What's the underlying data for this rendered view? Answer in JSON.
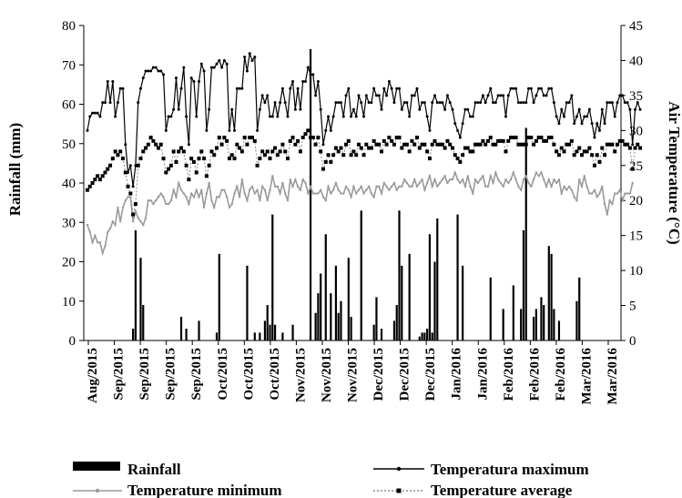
{
  "chart_data": {
    "type": "bar+line",
    "title": "",
    "ylabel_left": "Rainfall (mm)",
    "ylabel_right": "Air Temperature (°C)",
    "ylim_left": [
      0,
      80
    ],
    "yticks_left": [
      "0",
      "10",
      "20",
      "30",
      "40",
      "50",
      "60",
      "70",
      "80"
    ],
    "ylim_right": [
      0,
      45
    ],
    "yticks_right": [
      "0",
      "5",
      "10",
      "15",
      "20",
      "25",
      "30",
      "35",
      "40",
      "45"
    ],
    "x_tick_labels": [
      "Aug/2015",
      "Sep/2015",
      "Sep/2015",
      "Sep/2015",
      "Sep/2015",
      "Oct/2015",
      "Oct/2015",
      "Oct/2015",
      "Nov/2015",
      "Nov/2015",
      "Nov/2015",
      "Dec/2015",
      "Dec/2015",
      "Dec/2015",
      "Jan/2016",
      "Jan/2016",
      "Feb/2016",
      "Feb/2016",
      "Feb/2016",
      "Mar/2016",
      "Mar/2016"
    ],
    "n_days": 210,
    "grid": false,
    "legend_position": "bottom",
    "legend": [
      {
        "label": "Rainfall",
        "style": "bar",
        "color": "#000000"
      },
      {
        "label": "Temperatura maximum",
        "style": "line-dot",
        "color": "#000000"
      },
      {
        "label": "Temperature minimum",
        "style": "line-dot",
        "color": "#9a9a9a"
      },
      {
        "label": "Temperature average",
        "style": "dotted-square",
        "color": "#000000"
      }
    ],
    "rainfall": {
      "name": "Rainfall",
      "points": [
        [
          18,
          3
        ],
        [
          19,
          28
        ],
        [
          21,
          21
        ],
        [
          22,
          9
        ],
        [
          37,
          6
        ],
        [
          39,
          3
        ],
        [
          44,
          5
        ],
        [
          51,
          2
        ],
        [
          52,
          22
        ],
        [
          63,
          19
        ],
        [
          66,
          2
        ],
        [
          68,
          2
        ],
        [
          70,
          5
        ],
        [
          71,
          9
        ],
        [
          72,
          4
        ],
        [
          73,
          32
        ],
        [
          74,
          4
        ],
        [
          77,
          2
        ],
        [
          81,
          4
        ],
        [
          88,
          74
        ],
        [
          90,
          7
        ],
        [
          91,
          12
        ],
        [
          92,
          17
        ],
        [
          94,
          27
        ],
        [
          96,
          12
        ],
        [
          98,
          19
        ],
        [
          99,
          7
        ],
        [
          100,
          10
        ],
        [
          103,
          21
        ],
        [
          104,
          6
        ],
        [
          108,
          33
        ],
        [
          113,
          4
        ],
        [
          114,
          11
        ],
        [
          116,
          3
        ],
        [
          121,
          5
        ],
        [
          122,
          9
        ],
        [
          123,
          33
        ],
        [
          124,
          19
        ],
        [
          127,
          22
        ],
        [
          131,
          1
        ],
        [
          132,
          2
        ],
        [
          133,
          2
        ],
        [
          134,
          3
        ],
        [
          135,
          27
        ],
        [
          136,
          2
        ],
        [
          137,
          20
        ],
        [
          138,
          31
        ],
        [
          146,
          32
        ],
        [
          148,
          19
        ],
        [
          159,
          16
        ],
        [
          164,
          8
        ],
        [
          168,
          14
        ],
        [
          171,
          8
        ],
        [
          172,
          28
        ],
        [
          173,
          54
        ],
        [
          176,
          6
        ],
        [
          177,
          8
        ],
        [
          179,
          11
        ],
        [
          180,
          9
        ],
        [
          182,
          24
        ],
        [
          183,
          22
        ],
        [
          184,
          8
        ],
        [
          186,
          5
        ],
        [
          193,
          10
        ],
        [
          194,
          16
        ]
      ]
    },
    "series": [
      {
        "name": "Temperatura maximum",
        "values": [
          30,
          32,
          32.5,
          32.5,
          32.5,
          32,
          34,
          34,
          37,
          34,
          37,
          32,
          34,
          36,
          36,
          28,
          24,
          25,
          22,
          25,
          34,
          36,
          37.5,
          38.5,
          38.5,
          38.5,
          39,
          39,
          38.5,
          38.5,
          38,
          30,
          32,
          32,
          33,
          37.5,
          33,
          36,
          39,
          32,
          28,
          37.5,
          37,
          32,
          37,
          39.5,
          38.5,
          30,
          33,
          39,
          39,
          39.5,
          40,
          39,
          40,
          39.5,
          30,
          33,
          30,
          36,
          36,
          36,
          40.5,
          38.5,
          41,
          40,
          40.5,
          30,
          33,
          35,
          34,
          35,
          32,
          32,
          34,
          32,
          34,
          36,
          34,
          32,
          36,
          37,
          33,
          36,
          33,
          37,
          37,
          39,
          38,
          38,
          35,
          37,
          33,
          28,
          30,
          32,
          30,
          32,
          34,
          34,
          34,
          32,
          35,
          36,
          32,
          33,
          32,
          35,
          34,
          32,
          35,
          34,
          34,
          36,
          35,
          35,
          33,
          36,
          35,
          37,
          36,
          34,
          36,
          36,
          33,
          34,
          34,
          32,
          35,
          35,
          36,
          33,
          34,
          34,
          32,
          30,
          34,
          35,
          34,
          34,
          34,
          33,
          35,
          34,
          33,
          31,
          30,
          29,
          31,
          33,
          33,
          32,
          32,
          34,
          34,
          34,
          35,
          34,
          35,
          36,
          34,
          34,
          35,
          35,
          35,
          32,
          35,
          36,
          36,
          36,
          34,
          34,
          34,
          34,
          36,
          36,
          34,
          35,
          36,
          36,
          35,
          35,
          36,
          36,
          34,
          32,
          31,
          33,
          32,
          34,
          34,
          35,
          31,
          32,
          33,
          31,
          32,
          32,
          33,
          31,
          29,
          31,
          30,
          33,
          31,
          34,
          34,
          34,
          32,
          34,
          35,
          35,
          34,
          34,
          33,
          28,
          33,
          34,
          33
        ],
        "color": "#000000"
      },
      {
        "name": "Temperature minimum",
        "values": [
          16.5,
          15.5,
          14,
          15,
          14,
          14,
          12.5,
          13.5,
          15.5,
          16,
          17,
          16.5,
          19,
          17,
          19,
          20,
          20.5,
          20.5,
          17,
          18.5,
          17.5,
          17,
          16.5,
          17.5,
          20,
          20,
          19.5,
          20,
          20.5,
          21,
          20.5,
          19.5,
          19.5,
          20,
          21.5,
          20.5,
          22.5,
          21.5,
          21,
          20.5,
          19.5,
          21,
          20.5,
          21.5,
          20.5,
          21.5,
          19,
          21,
          22.5,
          20,
          19,
          20.5,
          20.5,
          21.5,
          21.5,
          20.5,
          19,
          19.5,
          21,
          22,
          20.5,
          23,
          21,
          20,
          21.5,
          22,
          21,
          21.5,
          20,
          22,
          21.5,
          20,
          21.5,
          23.5,
          22,
          22,
          21,
          22.5,
          21,
          20,
          23,
          22,
          23,
          22,
          21.5,
          23,
          22.5,
          21,
          22,
          21,
          21,
          21,
          21.5,
          20.5,
          20,
          22,
          21,
          21.5,
          22.5,
          21.5,
          21,
          21,
          22,
          21.5,
          20.5,
          22,
          21,
          21.5,
          22,
          21,
          21.5,
          22,
          21,
          20.5,
          22,
          22,
          21,
          22.5,
          22,
          21.5,
          22,
          22.5,
          21.5,
          22,
          22,
          23,
          22.5,
          22,
          22,
          23,
          22,
          22.5,
          23,
          21.5,
          22.5,
          23.5,
          22,
          23,
          22,
          22.5,
          23,
          23.5,
          22.5,
          23,
          23,
          24,
          23,
          22.5,
          23,
          22,
          23.5,
          22,
          21,
          23,
          22.5,
          23,
          23.5,
          22,
          22,
          23.5,
          22.5,
          24,
          23,
          22.5,
          22,
          23,
          22.5,
          23,
          24,
          23,
          22,
          21.5,
          23,
          23.5,
          22.5,
          22,
          23,
          24,
          23.5,
          24,
          23,
          22,
          23,
          22,
          23,
          22.5,
          23,
          21,
          22,
          21.5,
          22,
          21.5,
          20.5,
          20,
          23,
          22,
          23.5,
          22,
          21,
          21,
          21.5,
          20.5,
          21,
          22,
          19.5,
          18,
          20,
          19.5,
          21,
          21,
          21.5,
          20,
          21,
          21,
          21,
          22.5
        ],
        "color": "#9a9a9a"
      },
      {
        "name": "Temperature average",
        "values": [
          21.5,
          22,
          22.5,
          23,
          23.5,
          23,
          23.5,
          24,
          24.5,
          25,
          26,
          27,
          26.5,
          27,
          26,
          24,
          22,
          21,
          18,
          19.5,
          25,
          26,
          27,
          27.5,
          28,
          29,
          28.5,
          28,
          27.5,
          28,
          26,
          24,
          24.5,
          25,
          27,
          25.5,
          27,
          27.5,
          27,
          25,
          23,
          26,
          25.5,
          24,
          26,
          27,
          26,
          23.5,
          25,
          27,
          26.5,
          27.5,
          29,
          28,
          29,
          28.5,
          26,
          26.5,
          26,
          28,
          27.5,
          27,
          29,
          28,
          29,
          29,
          28.5,
          25,
          26,
          27,
          26.5,
          27,
          26,
          27,
          27.5,
          26.5,
          27,
          28,
          27,
          26,
          28.5,
          29,
          28,
          28.5,
          27,
          29,
          29.5,
          30,
          29,
          29,
          28,
          29,
          27,
          24.5,
          25.5,
          26.5,
          25.5,
          26.5,
          27.5,
          27,
          27.5,
          26.5,
          28,
          28.5,
          26.5,
          27,
          26.5,
          28,
          27.5,
          26.5,
          28,
          27.5,
          27.5,
          28.5,
          28,
          28,
          27,
          28.5,
          28,
          29,
          28.5,
          28,
          29,
          29,
          27.5,
          28,
          28,
          27,
          28.5,
          28,
          29,
          27.5,
          28,
          28,
          27,
          26,
          28,
          28.5,
          28,
          28,
          28,
          27.5,
          28.5,
          28,
          27.5,
          26.5,
          26,
          25.5,
          26.5,
          27.5,
          27.5,
          27,
          27,
          28,
          28,
          28,
          28.5,
          28,
          28.5,
          29,
          28,
          28,
          28.5,
          28.5,
          28.5,
          27,
          28.5,
          29,
          29,
          29,
          28,
          28,
          28,
          28,
          29,
          29,
          28,
          28.5,
          29,
          29,
          28.5,
          28.5,
          29,
          29,
          28,
          27,
          26.5,
          27.5,
          27,
          28,
          28,
          28.5,
          26.5,
          27,
          27.5,
          26.5,
          27,
          27,
          27.5,
          26.5,
          25,
          26.5,
          25.5,
          27.5,
          26.5,
          28,
          28,
          28,
          27,
          28,
          28.5,
          28.5,
          28,
          28,
          27.5,
          24.5,
          27.5,
          28,
          27.5
        ],
        "color": "#000000"
      }
    ]
  }
}
